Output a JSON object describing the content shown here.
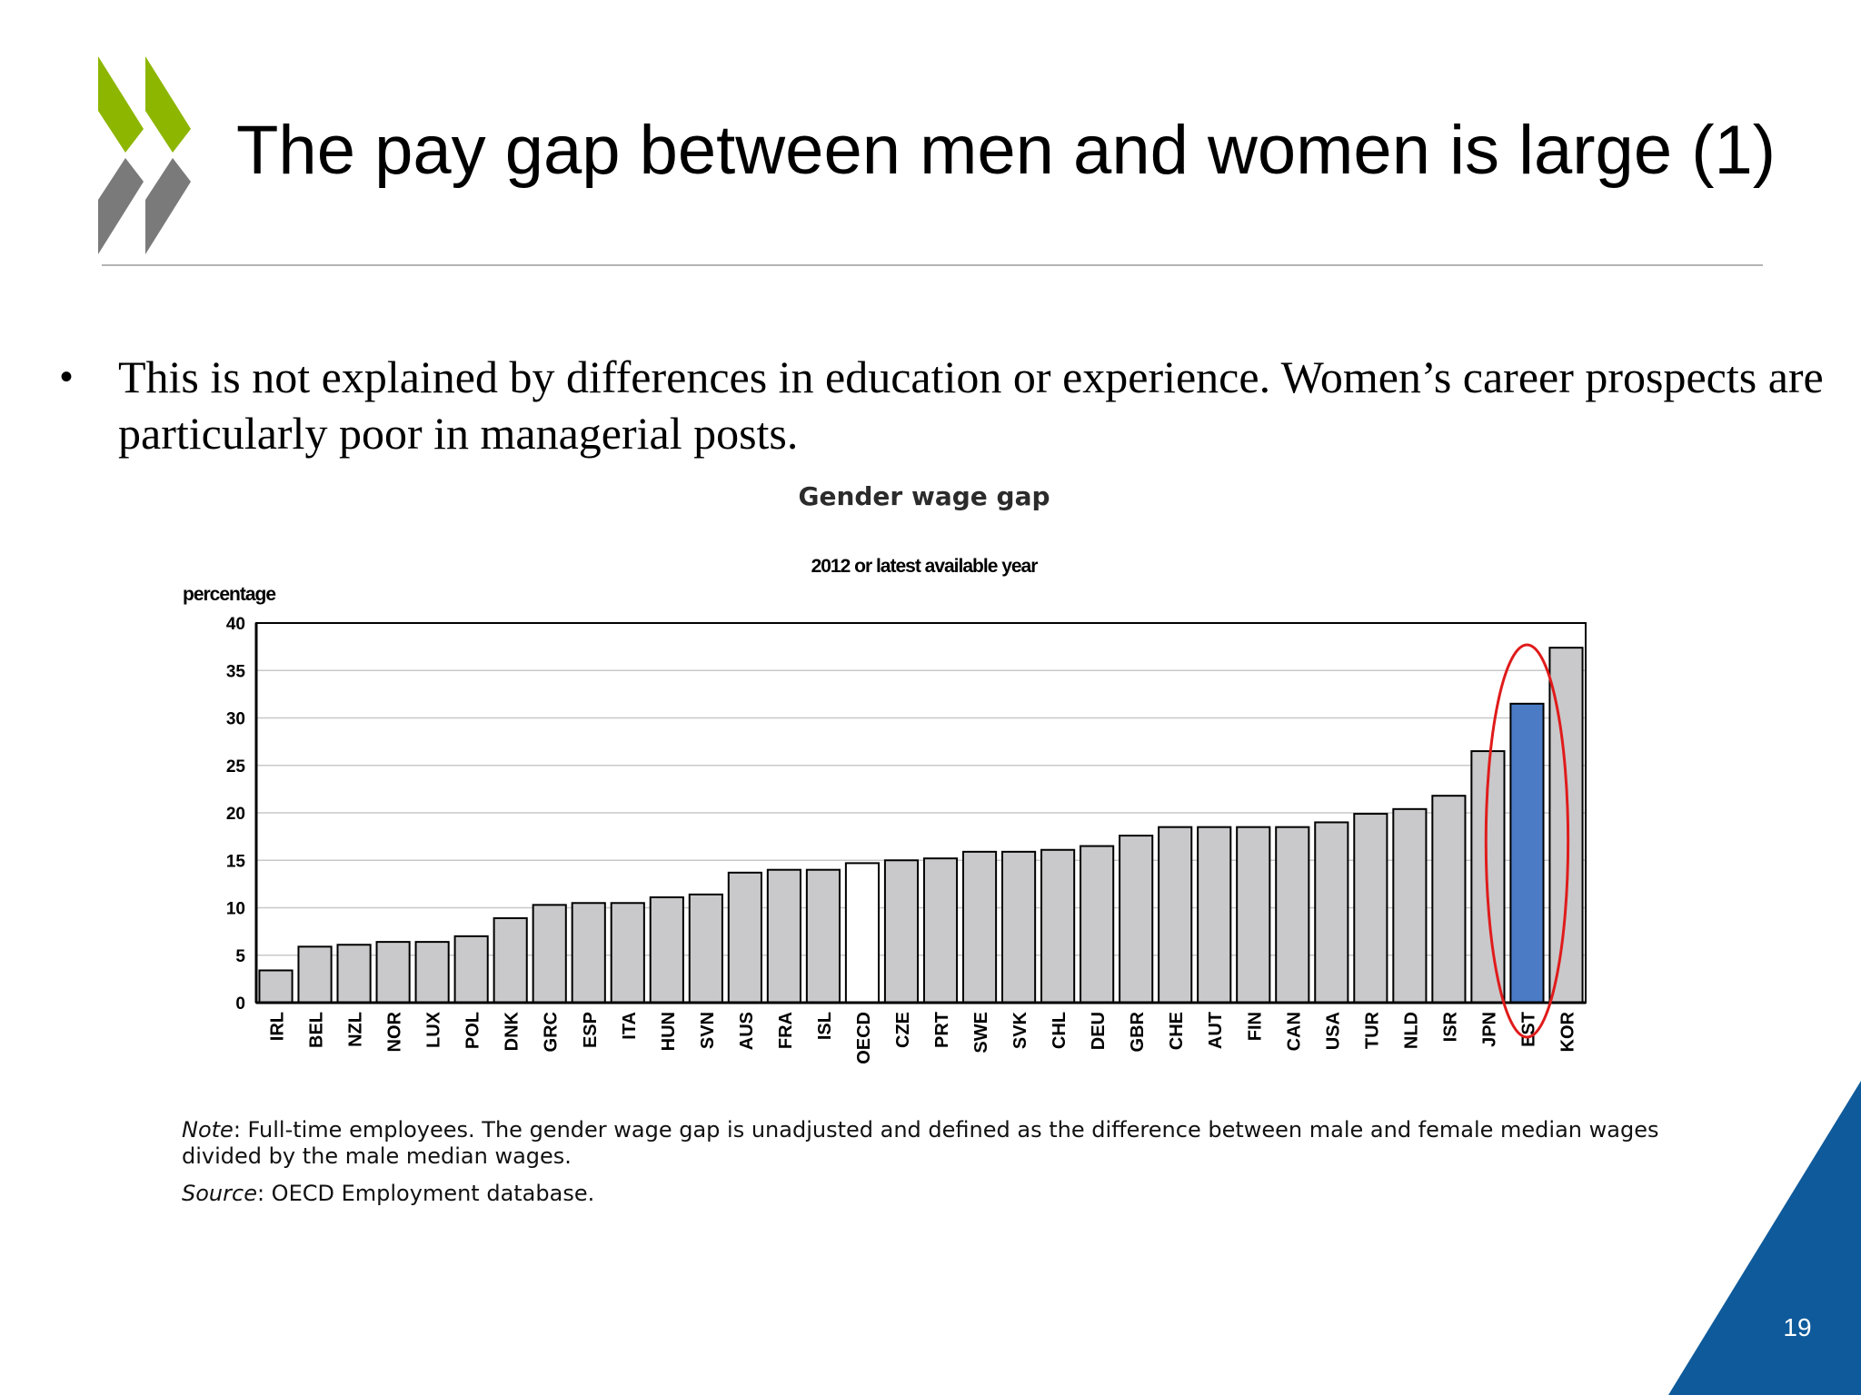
{
  "slide": {
    "title": "The pay gap between men and women is large (1)",
    "bullet": "This is not explained by differences in education or experience. Women’s career prospects are particularly poor in managerial posts.",
    "page_number": "19",
    "colors": {
      "logo_green": "#8db600",
      "logo_grey": "#7a7a7a",
      "corner_blue": "#0e5a9b"
    },
    "icons": [
      "oecd-logo-icon"
    ]
  },
  "chart_data": {
    "type": "bar",
    "title": "Gender wage gap",
    "subtitle": "2012 or latest available year",
    "ylabel": "percentage",
    "xlabel": "",
    "ylim": [
      0,
      40
    ],
    "yticks": [
      0,
      5,
      10,
      15,
      20,
      25,
      30,
      35,
      40
    ],
    "grid": true,
    "legend": "none",
    "categories": [
      "IRL",
      "BEL",
      "NZL",
      "NOR",
      "LUX",
      "POL",
      "DNK",
      "GRC",
      "ESP",
      "ITA",
      "HUN",
      "SVN",
      "AUS",
      "FRA",
      "ISL",
      "OECD",
      "CZE",
      "PRT",
      "SWE",
      "SVK",
      "CHL",
      "DEU",
      "GBR",
      "CHE",
      "AUT",
      "FIN",
      "CAN",
      "USA",
      "TUR",
      "NLD",
      "ISR",
      "JPN",
      "EST",
      "KOR"
    ],
    "values": [
      3.4,
      5.9,
      6.1,
      6.4,
      6.4,
      7.0,
      8.9,
      10.3,
      10.5,
      10.5,
      11.1,
      11.4,
      13.7,
      14.0,
      14.0,
      14.7,
      15.0,
      15.2,
      15.9,
      15.9,
      16.1,
      16.5,
      17.6,
      18.5,
      18.5,
      18.5,
      18.5,
      19.0,
      19.9,
      20.4,
      21.8,
      26.5,
      31.5,
      37.4
    ],
    "bar_color": "#c9c9cb",
    "highlight_colors": {
      "OECD": "#ffffff",
      "EST": "#4a7bc4"
    },
    "highlighted": "EST",
    "annotation_color": "#e01b1b",
    "note_label": "Note",
    "note": ": Full-time employees. The gender wage gap is unadjusted and defined as the difference between male and female median wages divided by the male median wages.",
    "source_label": "Source",
    "source": ": OECD Employment database."
  }
}
